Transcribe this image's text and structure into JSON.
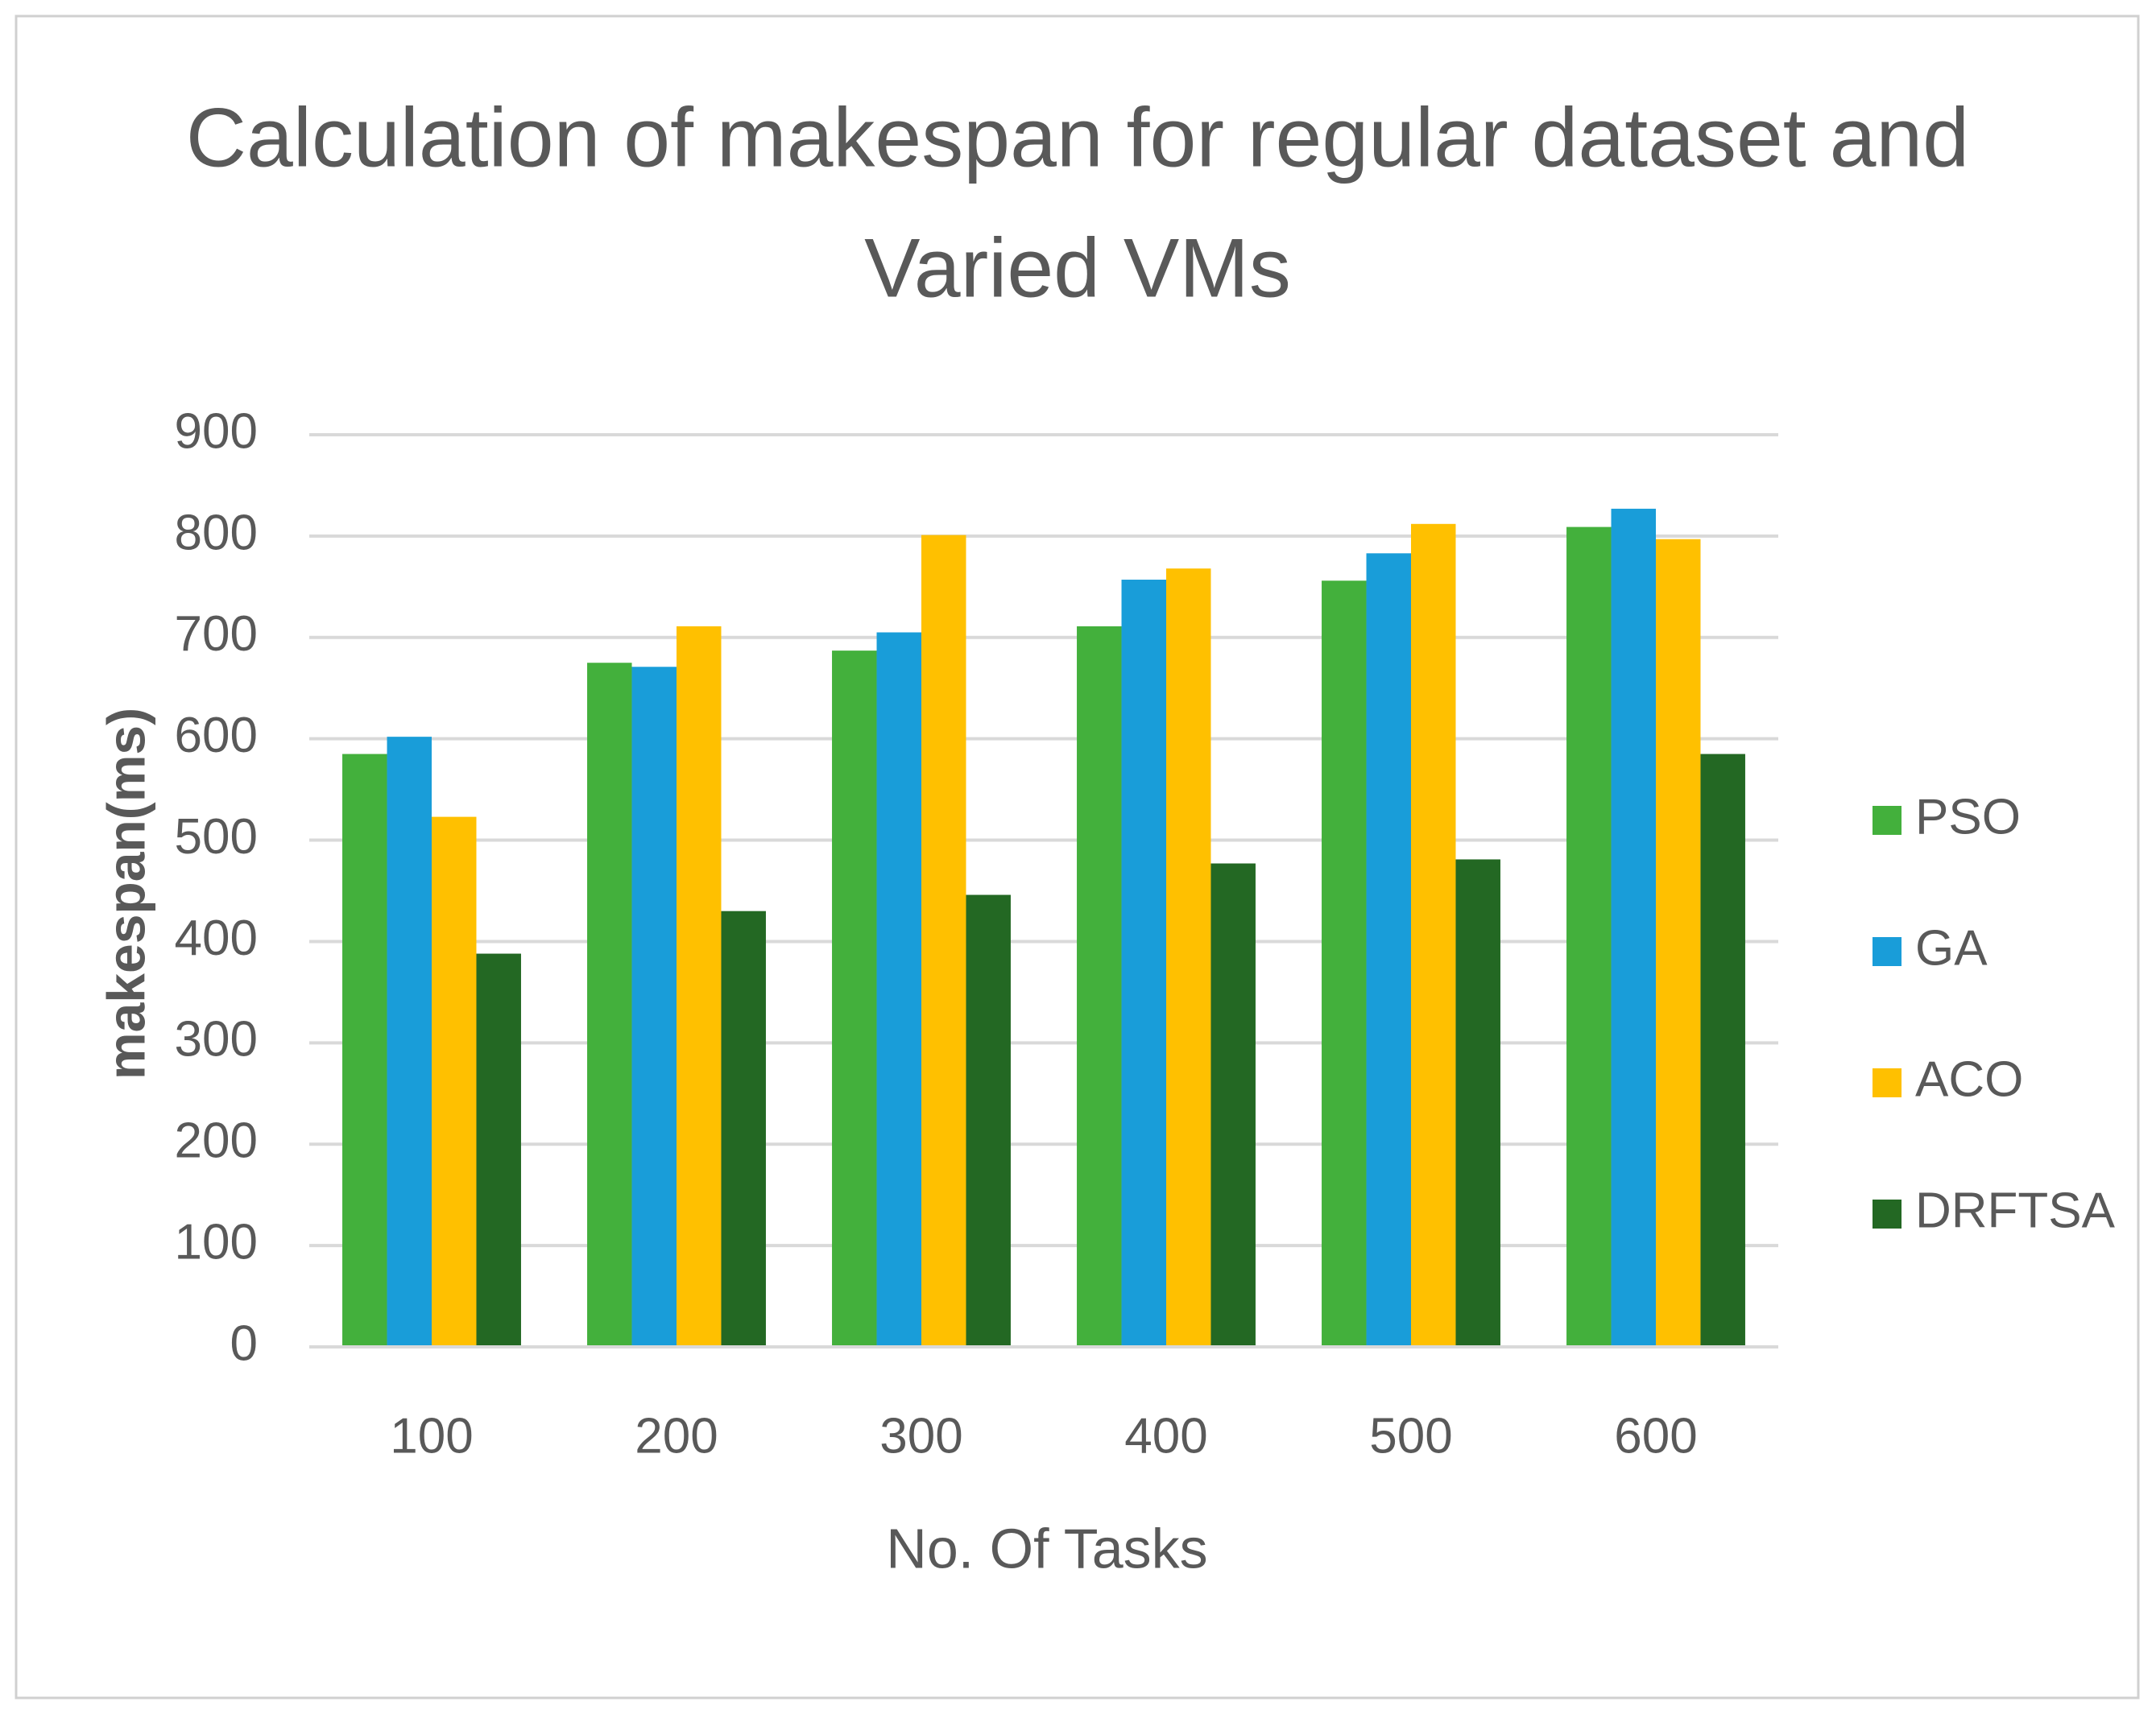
{
  "chart_data": {
    "type": "bar",
    "title": [
      "Calculation of makespan for regular dataset and",
      "Varied VMs"
    ],
    "x_label": "No. Of Tasks",
    "y_label": "makespan(ms)",
    "categories": [
      "100",
      "200",
      "300",
      "400",
      "500",
      "600"
    ],
    "series": [
      {
        "name": "PSO",
        "color": "#43b03c",
        "values": [
          585,
          675,
          687,
          711,
          756,
          809
        ]
      },
      {
        "name": "GA",
        "color": "#199dd9",
        "values": [
          602,
          671,
          705,
          757,
          783,
          827
        ]
      },
      {
        "name": "ACO",
        "color": "#ffc000",
        "values": [
          523,
          711,
          801,
          768,
          812,
          797
        ]
      },
      {
        "name": "DRFTSA",
        "color": "#236823",
        "values": [
          388,
          430,
          446,
          477,
          481,
          585
        ]
      }
    ],
    "ylim": [
      0,
      900
    ],
    "yticks": [
      0,
      100,
      200,
      300,
      400,
      500,
      600,
      700,
      800,
      900
    ],
    "grid": true,
    "legend": "right"
  }
}
